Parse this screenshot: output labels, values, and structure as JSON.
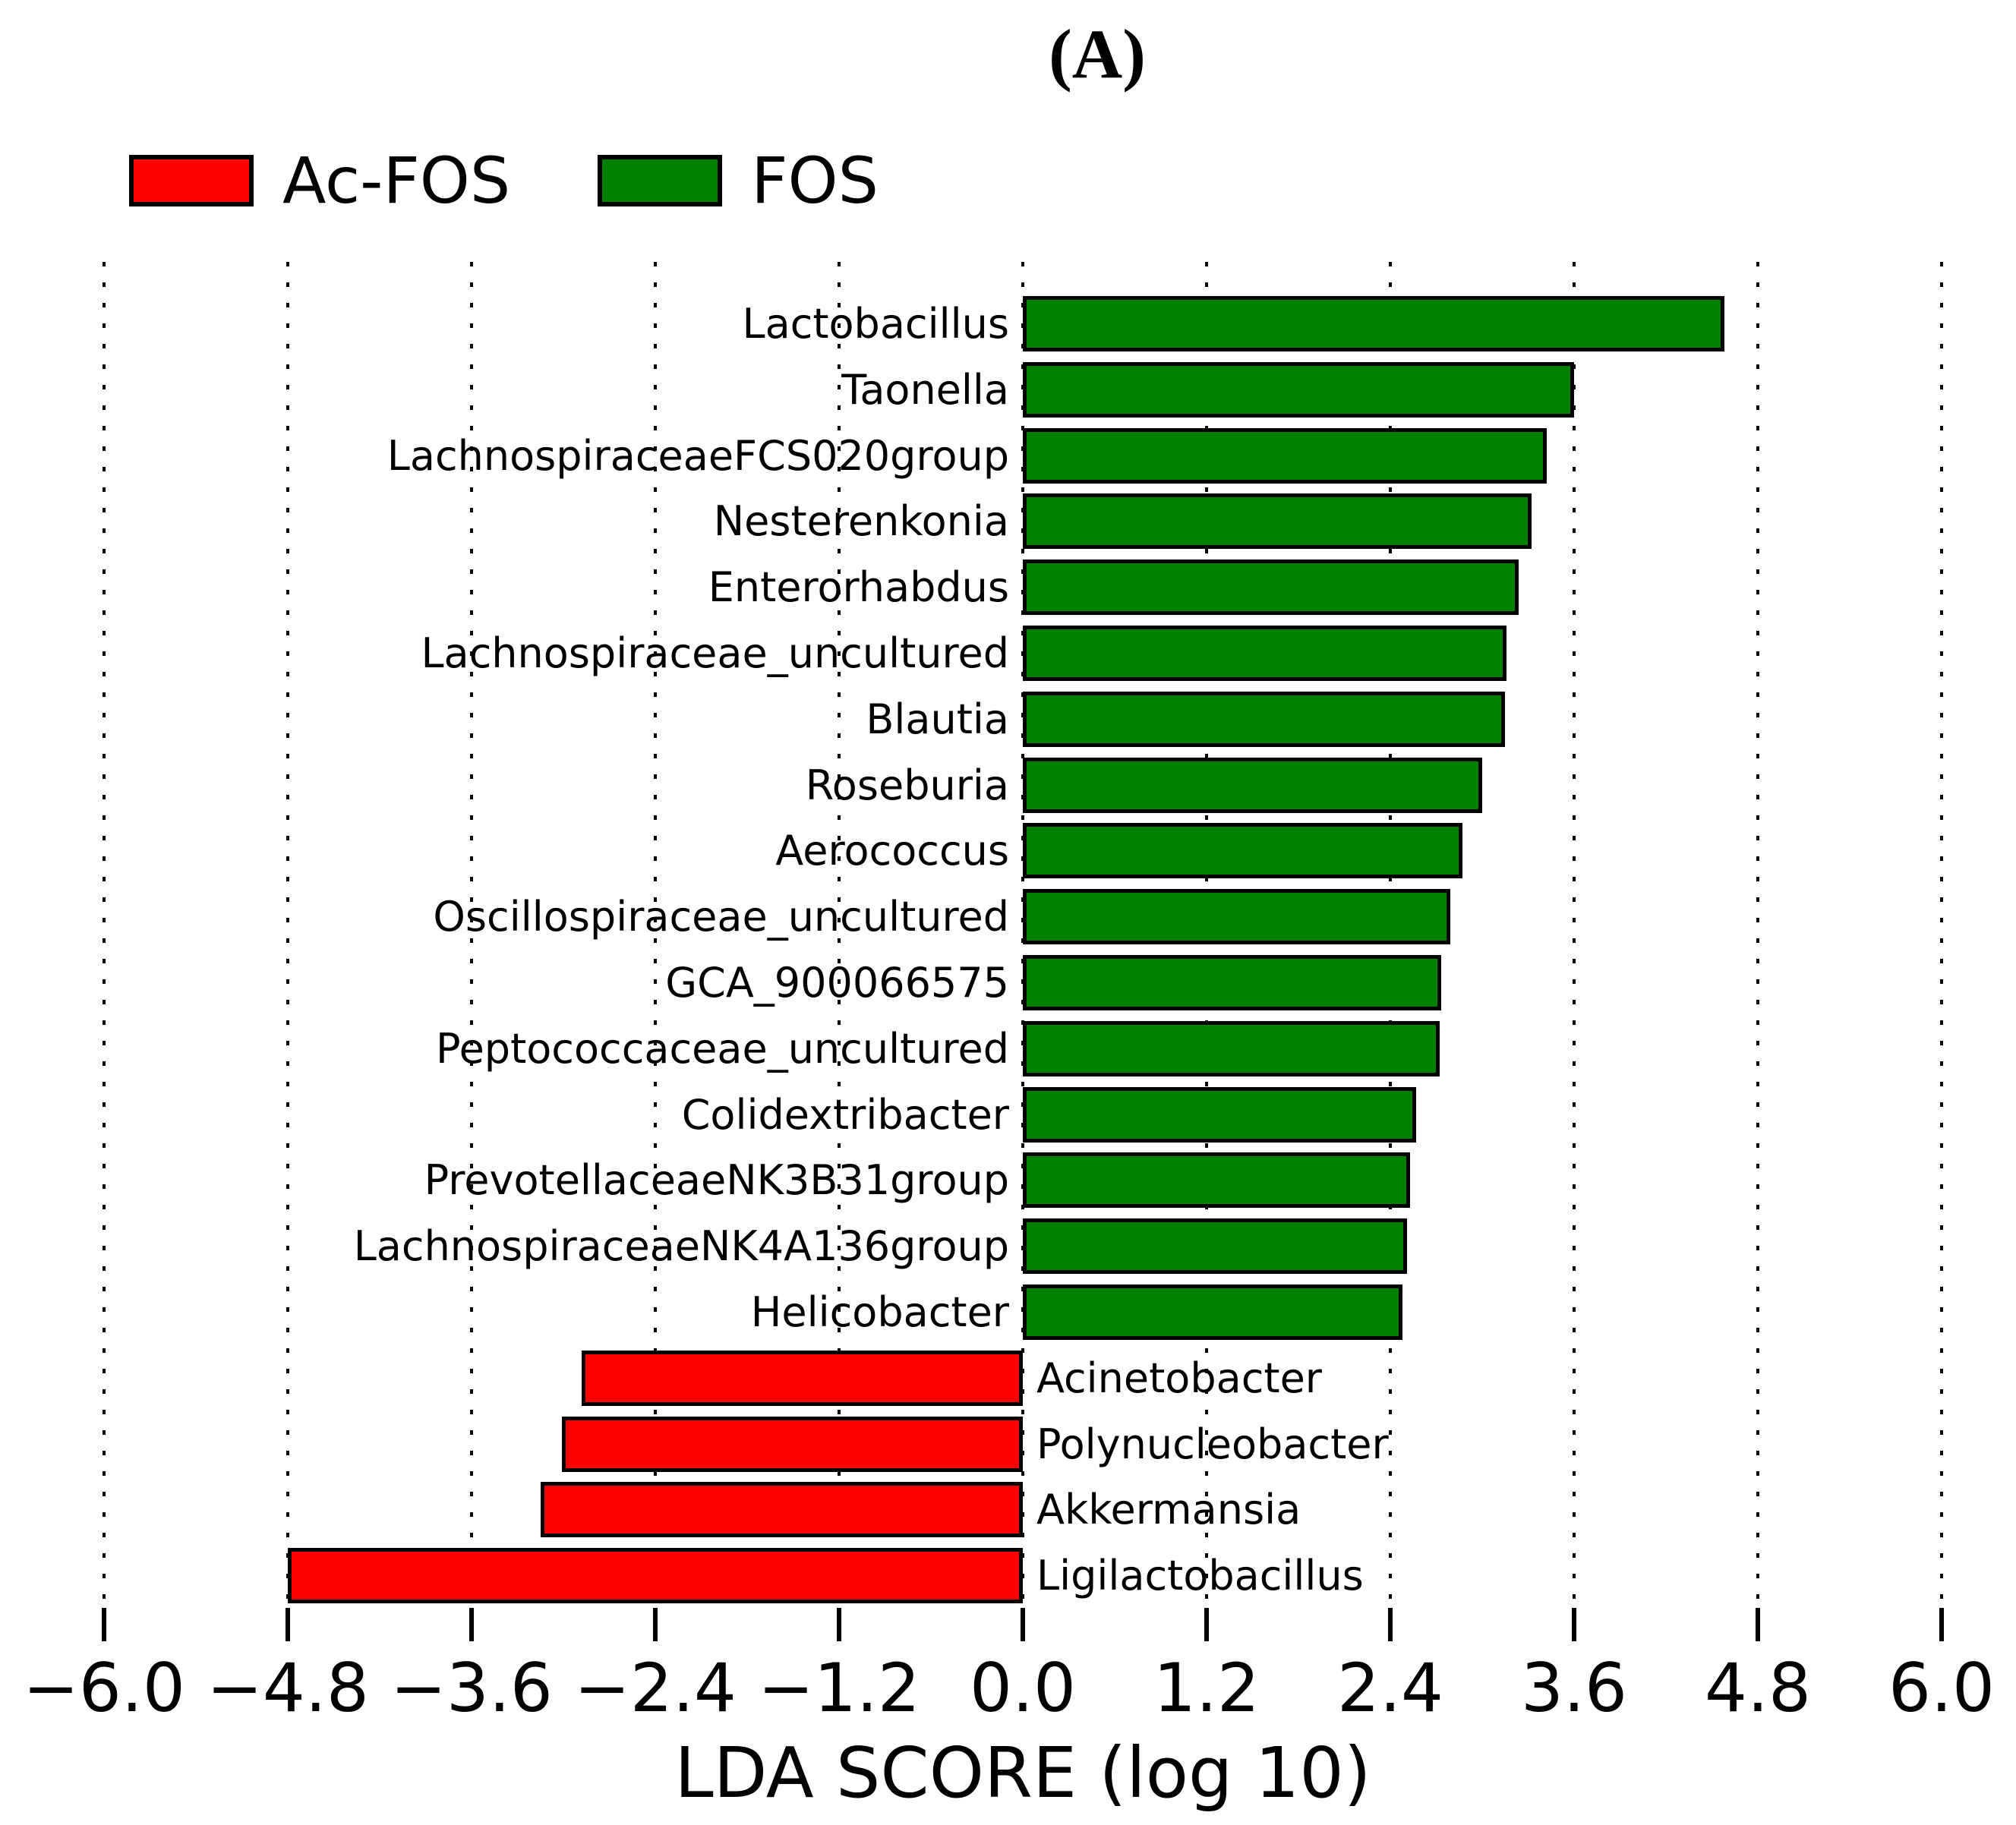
{
  "legend": {
    "items": [
      {
        "label": "Ac-FOS",
        "color": "#ff0000"
      },
      {
        "label": "FOS",
        "color": "#008000"
      }
    ]
  },
  "chart_data": {
    "type": "bar",
    "orientation": "horizontal",
    "title": "(A)",
    "xlabel": "LDA SCORE (log 10)",
    "xlim": [
      -6.0,
      6.0
    ],
    "xticks": [
      -6.0,
      -4.8,
      -3.6,
      -2.4,
      -1.2,
      0.0,
      1.2,
      2.4,
      3.6,
      4.8,
      6.0
    ],
    "grid": {
      "axis": "x",
      "style": "dotted"
    },
    "legend_position": "top-left",
    "groups": [
      {
        "name": "Ac-FOS",
        "color": "#ff0000"
      },
      {
        "name": "FOS",
        "color": "#008000"
      }
    ],
    "bars": [
      {
        "label": "Lactobacillus",
        "value": 4.58,
        "group": "FOS"
      },
      {
        "label": "Taonella",
        "value": 3.6,
        "group": "FOS"
      },
      {
        "label": "LachnospiraceaeFCS020group",
        "value": 3.42,
        "group": "FOS"
      },
      {
        "label": "Nesterenkonia",
        "value": 3.32,
        "group": "FOS"
      },
      {
        "label": "Enterorhabdus",
        "value": 3.24,
        "group": "FOS"
      },
      {
        "label": "Lachnospiraceae_uncultured",
        "value": 3.16,
        "group": "FOS"
      },
      {
        "label": "Blautia",
        "value": 3.15,
        "group": "FOS"
      },
      {
        "label": "Roseburia",
        "value": 3.0,
        "group": "FOS"
      },
      {
        "label": "Aerococcus",
        "value": 2.87,
        "group": "FOS"
      },
      {
        "label": "Oscillospiraceae_uncultured",
        "value": 2.79,
        "group": "FOS"
      },
      {
        "label": "GCA_900066575",
        "value": 2.73,
        "group": "FOS"
      },
      {
        "label": "Peptococcaceae_uncultured",
        "value": 2.72,
        "group": "FOS"
      },
      {
        "label": "Colidextribacter",
        "value": 2.57,
        "group": "FOS"
      },
      {
        "label": "PrevotellaceaeNK3B31group",
        "value": 2.53,
        "group": "FOS"
      },
      {
        "label": "LachnospiraceaeNK4A136group",
        "value": 2.51,
        "group": "FOS"
      },
      {
        "label": "Helicobacter",
        "value": 2.48,
        "group": "FOS"
      },
      {
        "label": "Acinetobacter",
        "value": -2.88,
        "group": "Ac-FOS"
      },
      {
        "label": "Polynucleobacter",
        "value": -3.01,
        "group": "Ac-FOS"
      },
      {
        "label": "Akkermansia",
        "value": -3.15,
        "group": "Ac-FOS"
      },
      {
        "label": "Ligilactobacillus",
        "value": -4.8,
        "group": "Ac-FOS"
      }
    ]
  }
}
